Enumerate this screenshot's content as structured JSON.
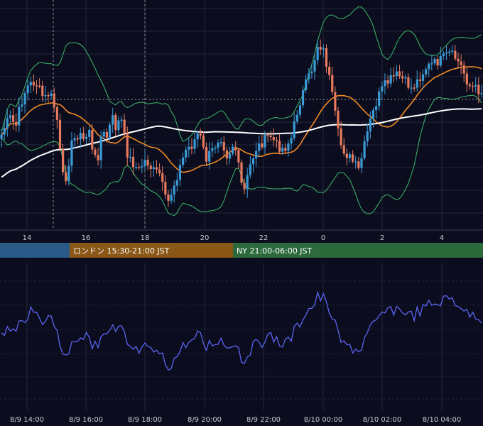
{
  "chart_data": [
    {
      "type": "candlestick",
      "x_ticks": [
        "14",
        "16",
        "18",
        "20",
        "22",
        "0",
        "2",
        "4"
      ],
      "indicators": [
        "Bollinger Bands",
        "moving average (orange)",
        "moving average (white)"
      ],
      "colors": {
        "up": "#3b9bd6",
        "down": "#e87a5d",
        "ma_fast": "#f08a24",
        "ma_slow": "#ffffff",
        "bands": "#3cb96a",
        "grid": "#23263a"
      }
    },
    {
      "type": "line",
      "x_ticks": [
        "8/9 14:00",
        "8/9 16:00",
        "8/9 18:00",
        "8/9 20:00",
        "8/9 22:00",
        "8/10 00:00",
        "8/10 02:00",
        "8/10 04:00"
      ],
      "colors": {
        "line": "#5a64f0",
        "grid": "#23263a"
      }
    }
  ],
  "sessions": {
    "tokyo": {
      "label": "",
      "color": "#2a5a88"
    },
    "london": {
      "label": "ロンドン 15:30-21:00 JST",
      "color": "#8a5716"
    },
    "ny": {
      "label": "NY 21:00-06:00 JST",
      "color": "#2c6a3c"
    }
  }
}
